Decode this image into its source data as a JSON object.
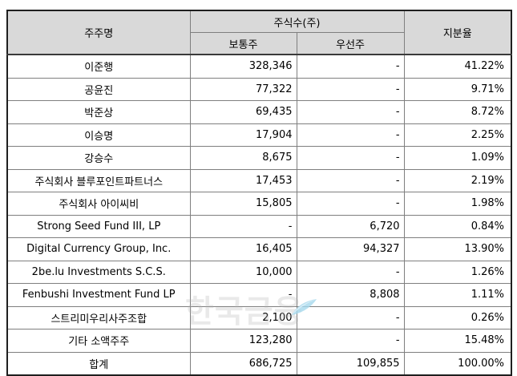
{
  "table": {
    "columns": {
      "shareholder": "주주명",
      "shares_group": "주식수(주)",
      "common": "보통주",
      "preferred": "우선주",
      "ratio": "지분율"
    },
    "rows": [
      {
        "name": "이준행",
        "common": "328,346",
        "preferred": "-",
        "ratio": "41.22%"
      },
      {
        "name": "공윤진",
        "common": "77,322",
        "preferred": "-",
        "ratio": "9.71%"
      },
      {
        "name": "박준상",
        "common": "69,435",
        "preferred": "-",
        "ratio": "8.72%"
      },
      {
        "name": "이승명",
        "common": "17,904",
        "preferred": "-",
        "ratio": "2.25%"
      },
      {
        "name": "강승수",
        "common": "8,675",
        "preferred": "-",
        "ratio": "1.09%"
      },
      {
        "name": "주식회사 블루포인트파트너스",
        "common": "17,453",
        "preferred": "-",
        "ratio": "2.19%"
      },
      {
        "name": "주식회사 아이씨비",
        "common": "15,805",
        "preferred": "-",
        "ratio": "1.98%"
      },
      {
        "name": "Strong Seed Fund III, LP",
        "common": "-",
        "preferred": "6,720",
        "ratio": "0.84%"
      },
      {
        "name": "Digital Currency Group, Inc.",
        "common": "16,405",
        "preferred": "94,327",
        "ratio": "13.90%"
      },
      {
        "name": "2be.lu Investments S.C.S.",
        "common": "10,000",
        "preferred": "-",
        "ratio": "1.26%"
      },
      {
        "name": "Fenbushi Investment Fund LP",
        "common": "-",
        "preferred": "8,808",
        "ratio": "1.11%"
      },
      {
        "name": "스트리미우리사주조합",
        "common": "2,100",
        "preferred": "-",
        "ratio": "0.26%"
      },
      {
        "name": "기타 소액주주",
        "common": "123,280",
        "preferred": "-",
        "ratio": "15.48%"
      },
      {
        "name": "합계",
        "common": "686,725",
        "preferred": "109,855",
        "ratio": "100.00%"
      }
    ]
  },
  "watermark": {
    "text": "한국금융",
    "leaf_color_light": "#dff1f9",
    "leaf_color_dark": "#a5d8ec"
  },
  "colors": {
    "header_bg": "#d9d9d9",
    "outer_border": "#1f1f1f",
    "grid_line": "#7f7f7f",
    "text": "#000000"
  }
}
